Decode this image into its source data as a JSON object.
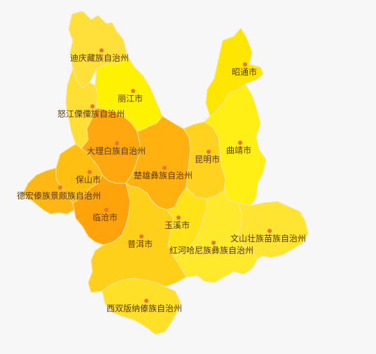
{
  "regions": [
    {
      "key": "diqing",
      "name": "迪庆藏族自治州",
      "color": "#ffe03a"
    },
    {
      "key": "nujiang",
      "name": "怒江傈僳族自治州",
      "color": "#ffdf33"
    },
    {
      "key": "lijiang",
      "name": "丽江市",
      "color": "#fff200"
    },
    {
      "key": "zhaotong",
      "name": "昭通市",
      "color": "#ffe600"
    },
    {
      "key": "dali",
      "name": "大理白族自治州",
      "color": "#ffa70e"
    },
    {
      "key": "chuxiong",
      "name": "楚雄彝族自治州",
      "color": "#ffb10f"
    },
    {
      "key": "kunming",
      "name": "昆明市",
      "color": "#ffd21f"
    },
    {
      "key": "qujing",
      "name": "曲靖市",
      "color": "#ffef14"
    },
    {
      "key": "baoshan",
      "name": "保山市",
      "color": "#ffbf11"
    },
    {
      "key": "dehong",
      "name": "德宏傣族景颇族自治州",
      "color": "#ffb714"
    },
    {
      "key": "lincang",
      "name": "临沧市",
      "color": "#ffa30a"
    },
    {
      "key": "puer",
      "name": "普洱市",
      "color": "#ffd01a"
    },
    {
      "key": "yuxi",
      "name": "玉溪市",
      "color": "#ffe318"
    },
    {
      "key": "honghe",
      "name": "红河哈尼族彝族自治州",
      "color": "#ffe92c"
    },
    {
      "key": "wenshan",
      "name": "文山壮族苗族自治州",
      "color": "#ffe432"
    },
    {
      "key": "xishuangbanna",
      "name": "西双版纳傣族自治州",
      "color": "#ffe029"
    }
  ]
}
